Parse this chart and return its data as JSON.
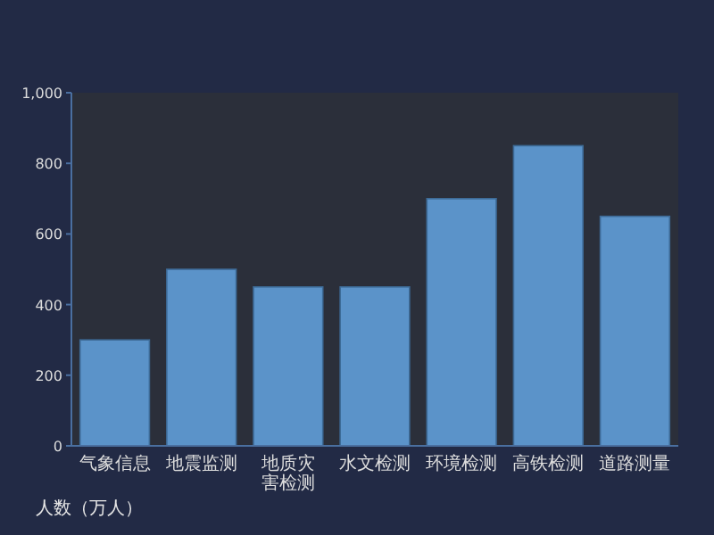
{
  "chart_data": {
    "type": "bar",
    "ylabel": "人数（万人）",
    "categories": [
      "气象信息",
      "地震监测",
      "地质灾害检测",
      "水文检测",
      "环境检测",
      "高铁检测",
      "道路测量"
    ],
    "values": [
      300,
      500,
      450,
      450,
      700,
      850,
      650
    ],
    "color": "#5b93c9",
    "ylim": [
      0,
      1000
    ],
    "yticks": [
      0,
      200,
      400,
      600,
      800,
      {
        "value": 1000,
        "label": "1,000"
      }
    ],
    "grid": false
  }
}
